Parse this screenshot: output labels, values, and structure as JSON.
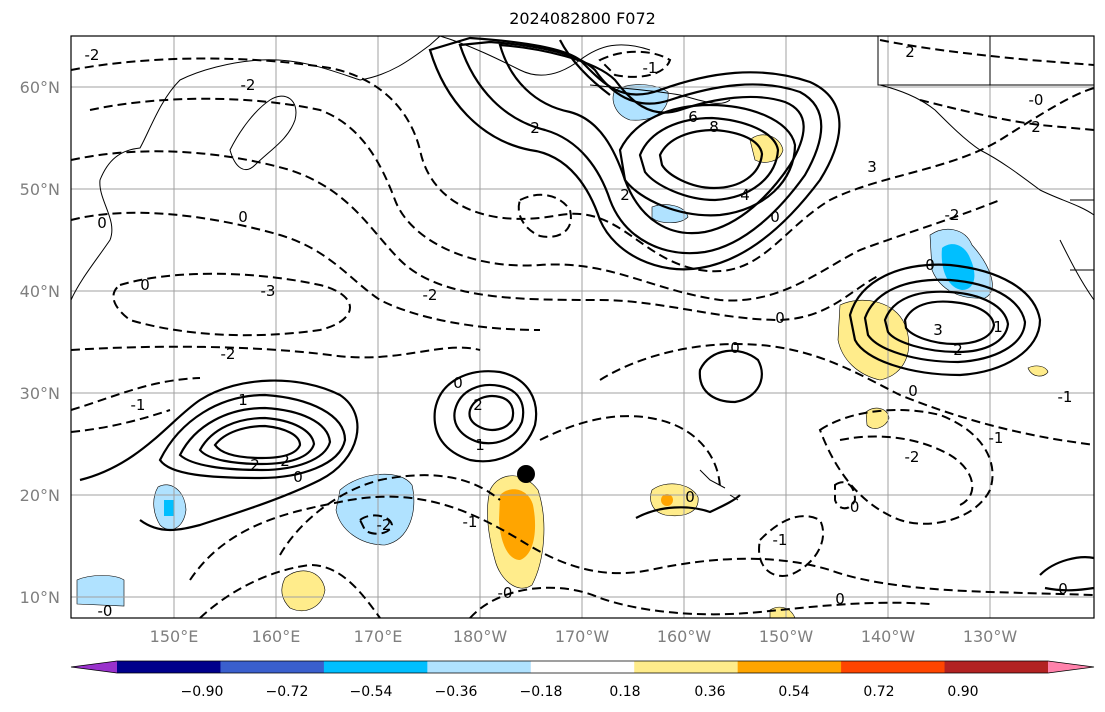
{
  "title": "2024082800 F072",
  "map": {
    "lat_labels": [
      "60°N",
      "50°N",
      "40°N",
      "30°N",
      "20°N",
      "10°N"
    ],
    "lon_labels": [
      "150°E",
      "160°E",
      "170°E",
      "180°W",
      "170°W",
      "160°W",
      "150°W",
      "140°W",
      "130°W"
    ],
    "marker": "black-dot-storm-position",
    "contour_labels": [
      "-2",
      "-1",
      "0",
      "1",
      "2",
      "3",
      "4",
      "6",
      "8",
      "-3",
      "-0"
    ]
  },
  "colorbar": {
    "ticks": [
      "−0.90",
      "−0.72",
      "−0.54",
      "−0.36",
      "−0.18",
      "0.18",
      "0.36",
      "0.54",
      "0.72",
      "0.90"
    ],
    "colors": [
      "#9932cc",
      "#00008b",
      "#3a5fcd",
      "#00bfff",
      "#b0e2ff",
      "#ffffff",
      "#ffec8b",
      "#ffa500",
      "#ff4500",
      "#b22222",
      "#ff82ab"
    ]
  }
}
